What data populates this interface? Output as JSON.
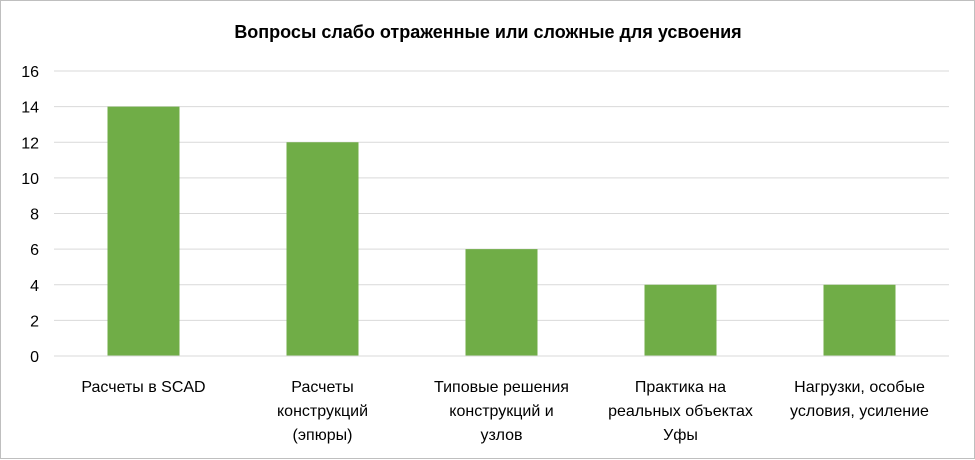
{
  "chart_data": {
    "type": "bar",
    "title": "Вопросы слабо отраженные или сложные для усвоения",
    "categories": [
      [
        "Расчеты в SCAD"
      ],
      [
        "Расчеты",
        "конструкций",
        "(эпюры)"
      ],
      [
        "Типовые решения",
        "конструкций и",
        "узлов"
      ],
      [
        "Практика на",
        "реальных объектах",
        "Уфы"
      ],
      [
        "Нагрузки, особые",
        "условия, усиление"
      ]
    ],
    "values": [
      14,
      12,
      6,
      4,
      4
    ],
    "yticks": [
      0,
      2,
      4,
      6,
      8,
      10,
      12,
      14,
      16
    ],
    "ylim": [
      0,
      16
    ],
    "grid": true,
    "legend": "none",
    "bar_color": "#70ad47",
    "grid_color": "#d9d9d9"
  }
}
